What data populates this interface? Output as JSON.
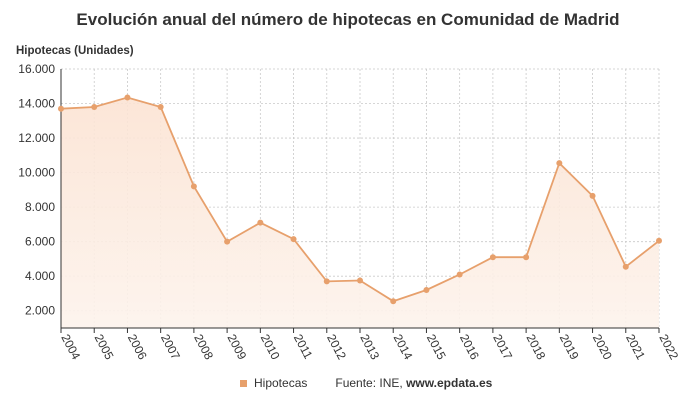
{
  "chart_data": {
    "type": "area",
    "title": "Evolución anual del número de hipotecas en Comunidad de Madrid",
    "ylabel": "Hipotecas (Unidades)",
    "xlabel": "",
    "categories": [
      "2004",
      "2005",
      "2006",
      "2007",
      "2008",
      "2009",
      "2010",
      "2011",
      "2012",
      "2013",
      "2014",
      "2015",
      "2016",
      "2017",
      "2018",
      "2019",
      "2020",
      "2021",
      "2022"
    ],
    "series": [
      {
        "name": "Hipotecas",
        "values": [
          13700,
          13800,
          14350,
          13800,
          9200,
          6000,
          7100,
          6150,
          3700,
          3750,
          2550,
          3200,
          4100,
          5100,
          5100,
          10550,
          8650,
          4550,
          6050
        ],
        "color": "#e7a06c"
      }
    ],
    "ylim": [
      1000,
      16000
    ],
    "yticks": [
      2000,
      4000,
      6000,
      8000,
      10000,
      12000,
      14000,
      16000
    ],
    "ytick_labels": [
      "2.000",
      "4.000",
      "6.000",
      "8.000",
      "10.000",
      "12.000",
      "14.000",
      "16.000"
    ],
    "grid": true,
    "legend_position": "bottom"
  },
  "legend": {
    "series_label": "Hipotecas",
    "source_prefix": "Fuente: INE,",
    "source_site": "www.epdata.es"
  }
}
